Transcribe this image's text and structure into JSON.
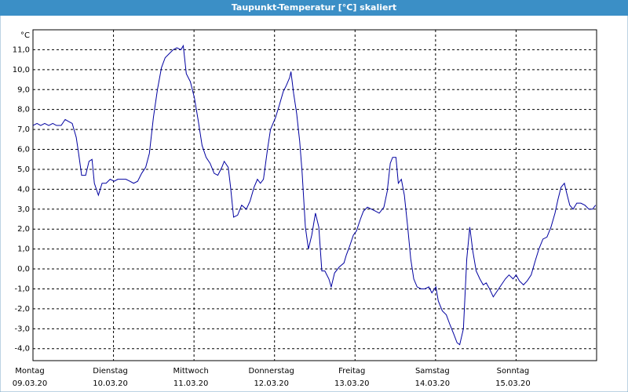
{
  "chart_data": {
    "type": "line",
    "title": "Taupunkt-Temperatur [°C] skaliert",
    "y_unit": "°C",
    "x": [
      0,
      1.2,
      2.3,
      3.5,
      4.7,
      5.9,
      7.0,
      8.4,
      9.6,
      10.6,
      11.7,
      12.9,
      13.6,
      14.5,
      15.7,
      16.7,
      17.6,
      18.3,
      19.5,
      20.6,
      21.8,
      23.0,
      24.2,
      25.3,
      26.5,
      27.7,
      28.9,
      30.0,
      31.2,
      32.4,
      33.6,
      34.7,
      35.9,
      37.1,
      38.3,
      39.4,
      40.6,
      41.8,
      42.9,
      44.1,
      44.8,
      45.7,
      46.9,
      48.1,
      49.3,
      50.4,
      51.6,
      52.8,
      54.0,
      55.1,
      56.3,
      57.0,
      58.2,
      58.9,
      59.8,
      61.0,
      62.2,
      63.6,
      64.7,
      65.9,
      66.9,
      67.8,
      68.7,
      69.9,
      70.8,
      72.3,
      73.4,
      74.6,
      75.5,
      76.5,
      76.9,
      77.7,
      78.6,
      79.5,
      80.2,
      81.2,
      82.1,
      83.1,
      84.2,
      85.2,
      86.1,
      87.0,
      88.2,
      88.9,
      89.9,
      91.3,
      92.7,
      93.4,
      94.3,
      95.5,
      96.4,
      97.6,
      98.5,
      99.7,
      100.9,
      102.1,
      103.2,
      104.6,
      105.6,
      106.5,
      107.2,
      108.2,
      108.9,
      109.8,
      110.7,
      111.7,
      112.6,
      113.5,
      114.5,
      115.7,
      116.8,
      118.0,
      118.9,
      120.1,
      120.8,
      122.0,
      123.2,
      124.3,
      125.5,
      126.4,
      127.2,
      128.3,
      129.3,
      130.2,
      131.1,
      132.1,
      133.2,
      134.2,
      135.1,
      136.1,
      137.2,
      138.4,
      139.6,
      140.8,
      141.9,
      143.1,
      144.0,
      145.0,
      146.2,
      147.3,
      148.5,
      149.7,
      150.8,
      152.0,
      153.2,
      154.4,
      155.6,
      156.5,
      157.4,
      158.4,
      159.1,
      160.0,
      161.0,
      162.1,
      163.3,
      164.5,
      165.7,
      166.8,
      167.7
    ],
    "series": [
      {
        "name": "Taupunkt-Temperatur",
        "color": "#0000a0",
        "values": [
          7.2,
          7.3,
          7.2,
          7.3,
          7.2,
          7.3,
          7.2,
          7.2,
          7.5,
          7.4,
          7.3,
          6.6,
          5.8,
          4.7,
          4.7,
          5.4,
          5.5,
          4.3,
          3.7,
          4.3,
          4.3,
          4.5,
          4.4,
          4.5,
          4.5,
          4.5,
          4.4,
          4.3,
          4.4,
          4.8,
          5.1,
          5.8,
          7.6,
          9.0,
          10.1,
          10.6,
          10.8,
          11.0,
          11.1,
          11.0,
          11.2,
          9.8,
          9.4,
          8.6,
          7.4,
          6.2,
          5.6,
          5.3,
          4.8,
          4.7,
          5.1,
          5.4,
          5.1,
          4.1,
          2.6,
          2.7,
          3.2,
          3.0,
          3.4,
          4.1,
          4.5,
          4.3,
          4.5,
          6.0,
          7.0,
          7.6,
          8.2,
          8.9,
          9.2,
          9.6,
          9.9,
          8.8,
          7.8,
          6.4,
          4.9,
          2.1,
          1.0,
          1.7,
          2.8,
          2.1,
          -0.1,
          -0.1,
          -0.5,
          -0.9,
          -0.2,
          0.1,
          0.3,
          0.7,
          1.1,
          1.7,
          1.9,
          2.5,
          2.9,
          3.1,
          3.0,
          2.9,
          2.8,
          3.1,
          3.9,
          5.3,
          5.6,
          5.6,
          4.3,
          4.5,
          3.7,
          2.1,
          0.5,
          -0.5,
          -0.9,
          -1.0,
          -1.0,
          -0.9,
          -1.2,
          -0.9,
          -1.6,
          -2.1,
          -2.3,
          -2.8,
          -3.3,
          -3.7,
          -3.8,
          -3.0,
          0.5,
          2.1,
          0.9,
          -0.1,
          -0.5,
          -0.8,
          -0.7,
          -1.0,
          -1.4,
          -1.1,
          -0.8,
          -0.5,
          -0.3,
          -0.5,
          -0.3,
          -0.6,
          -0.8,
          -0.6,
          -0.3,
          0.4,
          1.0,
          1.5,
          1.6,
          2.1,
          2.8,
          3.5,
          4.1,
          4.3,
          3.8,
          3.2,
          3.0,
          3.3,
          3.3,
          3.2,
          3.0,
          3.0,
          3.2
        ]
      }
    ],
    "xlim": [
      0,
      168
    ],
    "xticks": [
      {
        "value": 0,
        "label": "Montag"
      },
      {
        "value": 24,
        "label": "Dienstag"
      },
      {
        "value": 48,
        "label": "Mittwoch"
      },
      {
        "value": 72,
        "label": "Donnerstag"
      },
      {
        "value": 96,
        "label": "Freitag"
      },
      {
        "value": 120,
        "label": "Samstag"
      },
      {
        "value": 144,
        "label": "Sonntag"
      }
    ],
    "xtick_dates": [
      "09.03.20",
      "10.03.20",
      "11.03.20",
      "12.03.20",
      "13.03.20",
      "14.03.20",
      "15.03.20"
    ],
    "ylim": [
      -4.6,
      12.0
    ],
    "yticks": [
      {
        "value": -4,
        "label": "-4,0"
      },
      {
        "value": -3,
        "label": "-3,0"
      },
      {
        "value": -2,
        "label": "-2,0"
      },
      {
        "value": -1,
        "label": "-1,0"
      },
      {
        "value": 0,
        "label": "0,0"
      },
      {
        "value": 1,
        "label": "1,0"
      },
      {
        "value": 2,
        "label": "2,0"
      },
      {
        "value": 3,
        "label": "3,0"
      },
      {
        "value": 4,
        "label": "4,0"
      },
      {
        "value": 5,
        "label": "5,0"
      },
      {
        "value": 6,
        "label": "6,0"
      },
      {
        "value": 7,
        "label": "7,0"
      },
      {
        "value": 8,
        "label": "8,0"
      },
      {
        "value": 9,
        "label": "9,0"
      },
      {
        "value": 10,
        "label": "10,0"
      },
      {
        "value": 11,
        "label": "11,0"
      }
    ],
    "grid": true
  }
}
